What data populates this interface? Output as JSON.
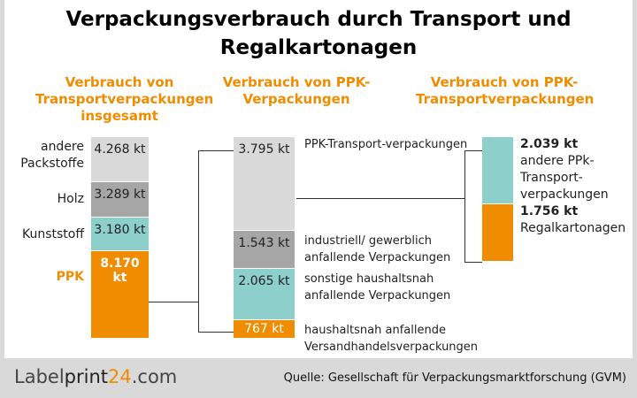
{
  "title": "Verpackungsverbrauch durch Transport und Regalkartonagen",
  "colors": {
    "light": "#d9d9d9",
    "dark": "#a6a6a6",
    "teal": "#8ccfcb",
    "orange": "#f08c00"
  },
  "chart_data": [
    {
      "type": "bar",
      "stacked": true,
      "title": "Verbrauch von Transportverpackungen insgesamt",
      "unit": "kt",
      "segments": [
        {
          "name": "andere Packstoffe",
          "value": 4268,
          "label": "4.268 kt",
          "color": "#d9d9d9"
        },
        {
          "name": "Holz",
          "value": 3289,
          "label": "3.289 kt",
          "color": "#a6a6a6"
        },
        {
          "name": "Kunststoff",
          "value": 3180,
          "label": "3.180 kt",
          "color": "#8ccfcb"
        },
        {
          "name": "PPK",
          "value": 8170,
          "label": "8.170 kt",
          "color": "#f08c00"
        }
      ]
    },
    {
      "type": "bar",
      "stacked": true,
      "title": "Verbrauch von PPK-Verpackungen",
      "unit": "kt",
      "segments": [
        {
          "name": "PPK-Transport-verpackungen",
          "value": 3795,
          "label": "3.795 kt",
          "color": "#d9d9d9"
        },
        {
          "name": "industriell/ gewerblich anfallende Verpackungen",
          "value": 1543,
          "label": "1.543 kt",
          "color": "#a6a6a6"
        },
        {
          "name": "sonstige haushaltsnah anfallende Verpackungen",
          "value": 2065,
          "label": "2.065 kt",
          "color": "#8ccfcb"
        },
        {
          "name": "haushaltsnah anfallende Versandhandelsverpackungen",
          "value": 767,
          "label": "767 kt",
          "color": "#f08c00"
        }
      ]
    },
    {
      "type": "bar",
      "stacked": true,
      "title": "Verbrauch von PPK-Transportverpackungen",
      "unit": "kt",
      "segments": [
        {
          "name": "andere PPk-Transport-verpackungen",
          "value": 2039,
          "label": "2.039 kt",
          "color": "#8ccfcb"
        },
        {
          "name": "Regalkartonagen",
          "value": 1756,
          "label": "1.756 kt",
          "color": "#f08c00"
        }
      ]
    }
  ],
  "footer": {
    "logo": "Labelprint24.com",
    "source": "Quelle: Gesellschaft für Verpackungsmarktforschung (GVM)"
  }
}
